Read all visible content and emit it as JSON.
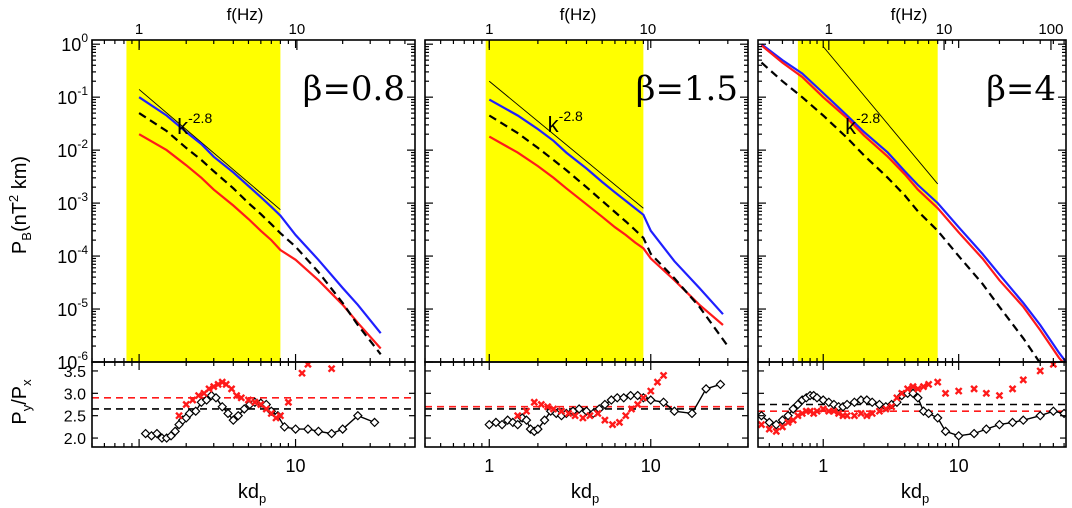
{
  "figure": {
    "y_label_top_main": "P",
    "y_label_top_sub": "B",
    "y_label_top_mid": "(nT",
    "y_label_top_sup": "2",
    "y_label_top_end": " km)",
    "y_label_bottom_main": "P",
    "y_label_bottom_sub1": "y",
    "y_label_bottom_mid": "/P",
    "y_label_bottom_sub2": "x",
    "x_label_main": "kd",
    "x_label_sub": "p",
    "top_axis_label": "f(Hz)",
    "slope_label_base": "k",
    "slope_label_exp": "-2.8"
  },
  "colors": {
    "highlight": "#ffff00",
    "blue": "#1f1fff",
    "red": "#ff1a1a",
    "black": "#000000",
    "thin": "#000000"
  },
  "chart_data": [
    {
      "type": "line",
      "panel": "beta=0.8",
      "beta_label": "β=0.8",
      "xscale": "log",
      "yscale": "log",
      "xlim": [
        0.5,
        58
      ],
      "ylim": [
        1e-06,
        1.2
      ],
      "ylim_ratio": [
        1.8,
        3.7
      ],
      "y_ticks": [
        {
          "v": 1,
          "label": "10",
          "exp": "0"
        },
        {
          "v": 0.1,
          "label": "10",
          "exp": "-1"
        },
        {
          "v": 0.01,
          "label": "10",
          "exp": "-2"
        },
        {
          "v": 0.001,
          "label": "10",
          "exp": "-3"
        },
        {
          "v": 0.0001,
          "label": "10",
          "exp": "-4"
        },
        {
          "v": 1e-05,
          "label": "10",
          "exp": "-5"
        },
        {
          "v": 1e-06,
          "label": "10",
          "exp": "-6"
        }
      ],
      "ratio_ticks": [
        {
          "v": 2.0,
          "label": "2.0"
        },
        {
          "v": 2.5,
          "label": "2.5"
        },
        {
          "v": 3.0,
          "label": "3.0"
        },
        {
          "v": 3.5,
          "label": "3.5"
        }
      ],
      "x_ticks": [
        {
          "v": 10,
          "label": "10"
        }
      ],
      "f_ticks": [
        {
          "kd": 1.0,
          "label": "1"
        },
        {
          "kd": 10.2,
          "label": "10"
        }
      ],
      "shaded_kd": [
        0.83,
        8.0
      ],
      "slope_line": {
        "kd": [
          1.0,
          8.0
        ],
        "p": [
          0.14,
          0.00075
        ]
      },
      "slope_label_at": {
        "kd": 1.75,
        "p": 0.02
      },
      "series": [
        {
          "name": "blue",
          "x": [
            1.0,
            1.5,
            2,
            2.5,
            3,
            4,
            5,
            6,
            7,
            8,
            10,
            14,
            20,
            25,
            35
          ],
          "y": [
            0.1,
            0.045,
            0.022,
            0.013,
            0.0075,
            0.0038,
            0.0021,
            0.0013,
            0.00085,
            0.00058,
            0.00025,
            8.5e-05,
            2.5e-05,
            1.2e-05,
            3.5e-06
          ]
        },
        {
          "name": "red",
          "x": [
            1.0,
            1.5,
            2,
            2.5,
            3,
            4,
            5,
            6,
            7,
            8,
            10,
            14,
            20,
            25,
            35
          ],
          "y": [
            0.02,
            0.01,
            0.0052,
            0.003,
            0.0018,
            0.0009,
            0.0005,
            0.0003,
            0.0002,
            0.00013,
            8.5e-05,
            3.5e-05,
            1.2e-05,
            5.5e-06,
            1.8e-06
          ]
        },
        {
          "name": "black-dashed",
          "x": [
            1.0,
            1.5,
            2,
            2.5,
            3,
            4,
            5,
            6,
            7,
            8,
            10,
            14,
            20,
            25,
            35
          ],
          "y": [
            0.05,
            0.023,
            0.011,
            0.0065,
            0.004,
            0.0019,
            0.001,
            0.00062,
            0.0004,
            0.00027,
            0.00015,
            5e-05,
            1.3e-05,
            5e-06,
            1.4e-06
          ]
        }
      ],
      "ratio_series": [
        {
          "name": "black-diamonds",
          "x": [
            1.1,
            1.2,
            1.3,
            1.4,
            1.5,
            1.6,
            1.7,
            1.8,
            1.9,
            2.0,
            2.1,
            2.3,
            2.5,
            2.7,
            2.9,
            3.1,
            3.4,
            3.7,
            4.0,
            4.3,
            4.7,
            5.1,
            5.5,
            6.0,
            6.5,
            7.0,
            7.7,
            8.5,
            10,
            12,
            14,
            17,
            20,
            25,
            32
          ],
          "y": [
            2.1,
            2.05,
            2.1,
            2.0,
            2.0,
            2.05,
            2.15,
            2.3,
            2.4,
            2.45,
            2.55,
            2.6,
            2.8,
            2.85,
            2.95,
            2.9,
            2.7,
            2.55,
            2.4,
            2.5,
            2.65,
            2.75,
            2.8,
            2.78,
            2.75,
            2.6,
            2.5,
            2.25,
            2.2,
            2.2,
            2.15,
            2.1,
            2.2,
            2.5,
            2.35
          ]
        },
        {
          "name": "red-crosses",
          "x": [
            1.8,
            2.0,
            2.2,
            2.4,
            2.6,
            2.8,
            3.0,
            3.2,
            3.4,
            3.6,
            3.9,
            4.2,
            4.5,
            5.0,
            5.5,
            6.0,
            6.5,
            7.0,
            7.5,
            8.0,
            9,
            11,
            12,
            17
          ],
          "y": [
            2.5,
            2.75,
            2.85,
            2.95,
            3.0,
            3.1,
            3.15,
            3.2,
            3.25,
            3.2,
            3.1,
            2.95,
            2.9,
            2.85,
            2.8,
            2.75,
            2.65,
            2.55,
            2.45,
            2.5,
            2.8,
            3.45,
            3.65,
            3.55
          ]
        }
      ],
      "ref_lines": {
        "black": 2.65,
        "red": 2.9
      }
    },
    {
      "type": "line",
      "panel": "beta=1.5",
      "beta_label": "β=1.5",
      "xscale": "log",
      "yscale": "log",
      "xlim": [
        0.4,
        40
      ],
      "ylim": [
        1e-06,
        1.2
      ],
      "ylim_ratio": [
        1.8,
        3.7
      ],
      "x_ticks": [
        {
          "v": 1,
          "label": "1"
        },
        {
          "v": 10,
          "label": "10"
        }
      ],
      "f_ticks": [
        {
          "kd": 1.0,
          "label": "1"
        },
        {
          "kd": 9.6,
          "label": "10"
        }
      ],
      "shaded_kd": [
        0.95,
        9.0
      ],
      "slope_line": {
        "kd": [
          1.0,
          9.0
        ],
        "p": [
          0.2,
          0.0008
        ]
      },
      "slope_label_at": {
        "kd": 2.3,
        "p": 0.022
      },
      "series": [
        {
          "name": "blue",
          "x": [
            1.0,
            1.5,
            2,
            2.5,
            3,
            4,
            5,
            6,
            7,
            8,
            9,
            10,
            14,
            20,
            28
          ],
          "y": [
            0.09,
            0.045,
            0.025,
            0.015,
            0.009,
            0.0045,
            0.0025,
            0.0016,
            0.0011,
            0.0008,
            0.0006,
            0.0003,
            8e-05,
            2.5e-05,
            8e-06
          ]
        },
        {
          "name": "red",
          "x": [
            1.0,
            1.5,
            2,
            2.5,
            3,
            4,
            5,
            6,
            7,
            8,
            9,
            10,
            14,
            20,
            28
          ],
          "y": [
            0.018,
            0.009,
            0.005,
            0.003,
            0.0019,
            0.00095,
            0.00055,
            0.00035,
            0.00025,
            0.00018,
            0.00014,
            9e-05,
            3.5e-05,
            1.2e-05,
            5e-06
          ]
        },
        {
          "name": "black-dashed",
          "x": [
            1.0,
            1.5,
            2,
            2.5,
            3,
            4,
            5,
            6,
            7,
            8,
            9,
            10,
            14,
            20,
            30
          ],
          "y": [
            0.045,
            0.021,
            0.011,
            0.0065,
            0.0042,
            0.002,
            0.0011,
            0.00068,
            0.00045,
            0.00031,
            0.00022,
            0.00011,
            3.8e-05,
            1.1e-05,
            2e-06
          ]
        }
      ],
      "ratio_series": [
        {
          "name": "black-diamonds",
          "x": [
            1.0,
            1.1,
            1.2,
            1.3,
            1.4,
            1.5,
            1.6,
            1.7,
            1.8,
            1.9,
            2.0,
            2.2,
            2.4,
            2.6,
            2.8,
            3.0,
            3.3,
            3.6,
            4.0,
            4.4,
            4.8,
            5.2,
            5.7,
            6.2,
            6.8,
            7.5,
            8.3,
            9,
            10,
            12,
            14,
            18,
            22,
            27
          ],
          "y": [
            2.3,
            2.35,
            2.3,
            2.4,
            2.35,
            2.3,
            2.45,
            2.4,
            2.2,
            2.15,
            2.2,
            2.4,
            2.6,
            2.55,
            2.5,
            2.55,
            2.6,
            2.65,
            2.6,
            2.55,
            2.65,
            2.75,
            2.85,
            2.9,
            2.9,
            2.95,
            2.95,
            2.9,
            2.85,
            2.8,
            2.6,
            2.55,
            3.1,
            3.2
          ]
        },
        {
          "name": "red-crosses",
          "x": [
            1.5,
            1.7,
            1.9,
            2.1,
            2.3,
            2.5,
            2.8,
            3.1,
            3.4,
            3.8,
            4.2,
            4.7,
            5.2,
            5.8,
            6.4,
            7.0,
            7.6,
            8.3,
            9.0,
            10,
            11,
            12
          ],
          "y": [
            2.5,
            2.6,
            2.8,
            2.75,
            2.7,
            2.65,
            2.6,
            2.55,
            2.5,
            2.45,
            2.5,
            2.55,
            2.4,
            2.3,
            2.35,
            2.5,
            2.65,
            2.75,
            2.9,
            3.05,
            3.25,
            3.4
          ]
        }
      ],
      "ref_lines": {
        "black": 2.65,
        "red": 2.7
      }
    },
    {
      "type": "line",
      "panel": "beta=4",
      "beta_label": "β=4",
      "xscale": "log",
      "yscale": "log",
      "xlim": [
        0.33,
        62
      ],
      "ylim": [
        1e-06,
        1.2
      ],
      "ylim_ratio": [
        1.8,
        3.7
      ],
      "x_ticks": [
        {
          "v": 1,
          "label": "1"
        },
        {
          "v": 10,
          "label": "10"
        }
      ],
      "f_ticks": [
        {
          "kd": 1.1,
          "label": "1"
        },
        {
          "kd": 7.8,
          "label": "10"
        },
        {
          "kd": 48,
          "label": "100"
        }
      ],
      "shaded_kd": [
        0.65,
        7.0
      ],
      "slope_line": {
        "kd": [
          1.0,
          7.0
        ],
        "p": [
          0.9,
          0.0023
        ]
      },
      "slope_label_at": {
        "kd": 1.45,
        "p": 0.02
      },
      "series": [
        {
          "name": "blue",
          "x": [
            0.35,
            0.5,
            0.7,
            1,
            1.5,
            2,
            3,
            4,
            5,
            7,
            10,
            15,
            20,
            30,
            40,
            55,
            62
          ],
          "y": [
            1.0,
            0.5,
            0.28,
            0.12,
            0.045,
            0.022,
            0.009,
            0.004,
            0.0022,
            0.001,
            0.00035,
            0.00011,
            4.5e-05,
            1.3e-05,
            5e-06,
            1.5e-06,
            1e-06
          ]
        },
        {
          "name": "red",
          "x": [
            0.35,
            0.5,
            0.7,
            1,
            1.5,
            2,
            3,
            4,
            5,
            7,
            10,
            15,
            20,
            30,
            40,
            55,
            62
          ],
          "y": [
            0.95,
            0.45,
            0.24,
            0.1,
            0.04,
            0.019,
            0.0075,
            0.0035,
            0.0018,
            0.0008,
            0.00028,
            9e-05,
            3.5e-05,
            1.1e-05,
            4e-06,
            1.2e-06,
            8.5e-07
          ]
        },
        {
          "name": "black-dashed",
          "x": [
            0.35,
            0.5,
            0.7,
            1,
            1.5,
            2,
            3,
            4,
            5,
            7,
            10,
            15,
            20,
            30,
            40
          ],
          "y": [
            0.45,
            0.2,
            0.1,
            0.045,
            0.017,
            0.008,
            0.003,
            0.0014,
            0.0007,
            0.0003,
            0.0001,
            3e-05,
            1.1e-05,
            2.8e-06,
            9.5e-07
          ]
        }
      ],
      "ratio_series": [
        {
          "name": "black-diamonds",
          "x": [
            0.35,
            0.4,
            0.45,
            0.5,
            0.55,
            0.6,
            0.65,
            0.7,
            0.75,
            0.8,
            0.85,
            0.9,
            1.0,
            1.1,
            1.2,
            1.3,
            1.4,
            1.5,
            1.7,
            1.9,
            2.1,
            2.3,
            2.6,
            2.9,
            3.2,
            3.5,
            3.8,
            4.2,
            4.6,
            5.0,
            5.5,
            6.0,
            7,
            8,
            10,
            13,
            16,
            20,
            25,
            30,
            40,
            50,
            60
          ],
          "y": [
            2.5,
            2.35,
            2.3,
            2.4,
            2.5,
            2.65,
            2.75,
            2.85,
            2.9,
            2.95,
            2.95,
            2.9,
            2.85,
            2.8,
            2.75,
            2.7,
            2.7,
            2.75,
            2.8,
            2.85,
            2.85,
            2.8,
            2.75,
            2.7,
            2.75,
            2.8,
            2.95,
            3.0,
            3.0,
            2.9,
            2.6,
            2.55,
            2.45,
            2.15,
            2.05,
            2.1,
            2.2,
            2.3,
            2.35,
            2.4,
            2.5,
            2.6,
            2.55
          ]
        },
        {
          "name": "red-crosses",
          "x": [
            0.35,
            0.4,
            0.45,
            0.5,
            0.55,
            0.6,
            0.65,
            0.7,
            0.75,
            0.8,
            0.85,
            0.9,
            1.0,
            1.1,
            1.2,
            1.3,
            1.4,
            1.5,
            1.7,
            1.9,
            2.1,
            2.3,
            2.6,
            2.9,
            3.2,
            3.5,
            3.8,
            4.2,
            4.6,
            5.0,
            5.5,
            6.0,
            7,
            8,
            10,
            13,
            16,
            20,
            25,
            30,
            40,
            50
          ],
          "y": [
            2.3,
            2.2,
            2.15,
            2.25,
            2.35,
            2.4,
            2.5,
            2.55,
            2.6,
            2.6,
            2.55,
            2.6,
            2.65,
            2.6,
            2.6,
            2.55,
            2.5,
            2.5,
            2.5,
            2.55,
            2.5,
            2.55,
            2.6,
            2.65,
            2.7,
            2.9,
            3.0,
            3.1,
            3.15,
            3.1,
            3.15,
            3.2,
            3.25,
            3.0,
            3.05,
            3.1,
            3.0,
            2.95,
            3.1,
            3.3,
            3.5,
            3.65
          ]
        }
      ],
      "ref_lines": {
        "black": 2.75,
        "red": 2.6
      }
    }
  ]
}
